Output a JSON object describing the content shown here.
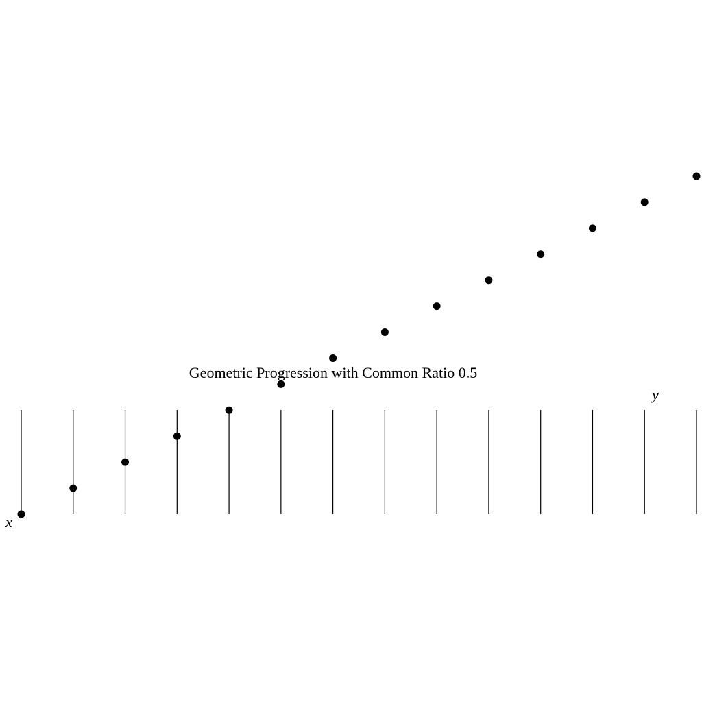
{
  "chart_data": {
    "type": "scatter",
    "title": "Geometric Progression with Common Ratio 0.5",
    "x_label": "x",
    "y_label": "y",
    "x": [
      0,
      1,
      2,
      3,
      4,
      5,
      6,
      7,
      8,
      9,
      10,
      11,
      12,
      13
    ],
    "values": [
      0,
      0.5,
      1,
      1.5,
      2,
      2.5,
      3,
      3.5,
      4,
      4.5,
      5,
      5.5,
      6,
      6.5
    ],
    "color": "#000000",
    "xlim": [
      0,
      13
    ],
    "ylim": [
      0,
      6.5
    ],
    "grid": true
  }
}
